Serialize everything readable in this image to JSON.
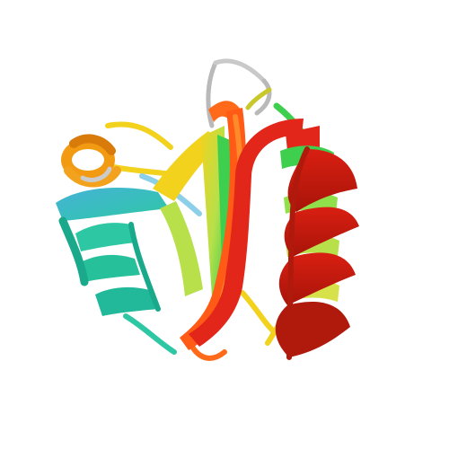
{
  "image": {
    "background": "#ffffff",
    "subject": "protein-ribbon",
    "palette": {
      "n_term_blue": "#3fb6d8",
      "teal": "#2ec7a4",
      "green": "#3fcf4f",
      "yellow_green": "#b7e04a",
      "yellow": "#f2d21d",
      "orange": "#f29a12",
      "orange_red": "#ff6a1a",
      "red": "#cc1f12",
      "dark_red": "#a81409",
      "loop_gray": "#b9b9b9"
    }
  }
}
